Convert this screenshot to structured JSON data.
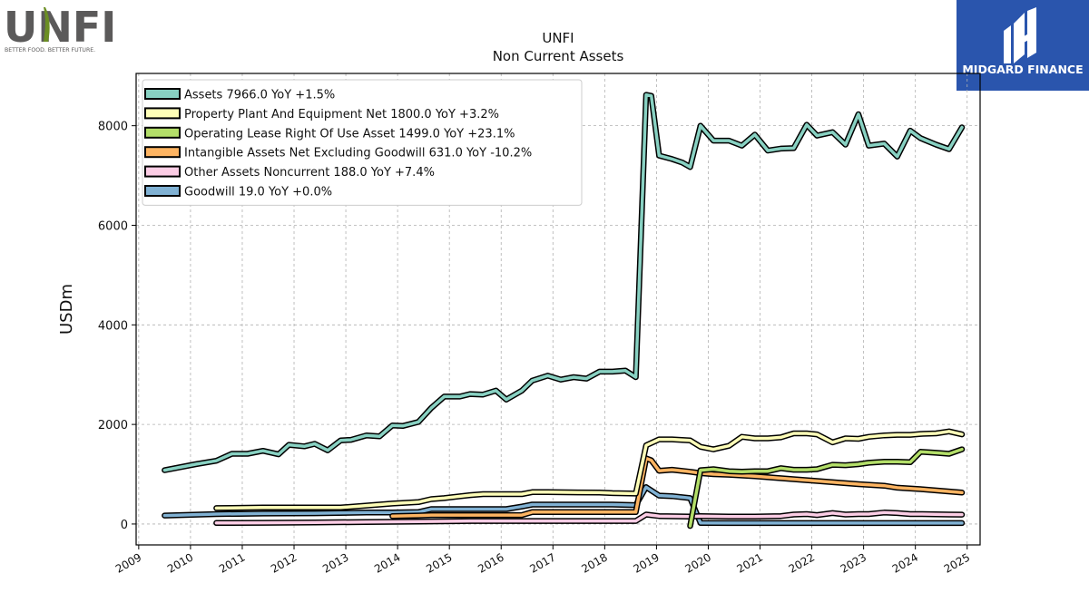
{
  "brand": {
    "left_logo": {
      "wordmark": "UNFI",
      "tagline": "BETTER FOOD. BETTER FUTURE."
    },
    "right_logo": {
      "name": "MIDGARD FINANCE",
      "bg_color": "#2a55ad"
    }
  },
  "chart_data": {
    "type": "line",
    "title": "UNFI",
    "subtitle": "Non Current  Assets",
    "xlabel": "",
    "ylabel": "USDm",
    "xlim": [
      2008.95,
      2025.25
    ],
    "ylim": [
      -420,
      9050
    ],
    "yticks": [
      0,
      2000,
      4000,
      6000,
      8000
    ],
    "xticks": [
      "2009",
      "2010",
      "2011",
      "2012",
      "2013",
      "2014",
      "2015",
      "2016",
      "2017",
      "2018",
      "2019",
      "2020",
      "2021",
      "2022",
      "2023",
      "2024",
      "2025"
    ],
    "grid": true,
    "legend_position": "top-left",
    "series": [
      {
        "name": "Assets  7966.0 YoY +1.5%",
        "color": "#88d1c2",
        "points": [
          [
            2009.5,
            1080
          ],
          [
            2010.1,
            1200
          ],
          [
            2010.5,
            1270
          ],
          [
            2010.8,
            1410
          ],
          [
            2011.1,
            1410
          ],
          [
            2011.4,
            1470
          ],
          [
            2011.7,
            1400
          ],
          [
            2011.9,
            1590
          ],
          [
            2012.2,
            1560
          ],
          [
            2012.4,
            1610
          ],
          [
            2012.65,
            1480
          ],
          [
            2012.9,
            1680
          ],
          [
            2013.1,
            1690
          ],
          [
            2013.4,
            1780
          ],
          [
            2013.65,
            1760
          ],
          [
            2013.9,
            1980
          ],
          [
            2014.1,
            1970
          ],
          [
            2014.4,
            2050
          ],
          [
            2014.65,
            2330
          ],
          [
            2014.9,
            2560
          ],
          [
            2015.2,
            2560
          ],
          [
            2015.4,
            2610
          ],
          [
            2015.65,
            2600
          ],
          [
            2015.9,
            2680
          ],
          [
            2016.1,
            2500
          ],
          [
            2016.4,
            2680
          ],
          [
            2016.6,
            2880
          ],
          [
            2016.9,
            2980
          ],
          [
            2017.15,
            2900
          ],
          [
            2017.4,
            2950
          ],
          [
            2017.65,
            2920
          ],
          [
            2017.9,
            3060
          ],
          [
            2018.15,
            3060
          ],
          [
            2018.4,
            3080
          ],
          [
            2018.6,
            2950
          ],
          [
            2018.8,
            8620
          ],
          [
            2018.9,
            8600
          ],
          [
            2019.05,
            7400
          ],
          [
            2019.3,
            7330
          ],
          [
            2019.5,
            7260
          ],
          [
            2019.65,
            7170
          ],
          [
            2019.85,
            8000
          ],
          [
            2020.1,
            7700
          ],
          [
            2020.4,
            7700
          ],
          [
            2020.65,
            7600
          ],
          [
            2020.9,
            7820
          ],
          [
            2021.15,
            7500
          ],
          [
            2021.4,
            7540
          ],
          [
            2021.65,
            7550
          ],
          [
            2021.9,
            8020
          ],
          [
            2022.1,
            7800
          ],
          [
            2022.4,
            7870
          ],
          [
            2022.65,
            7620
          ],
          [
            2022.9,
            8230
          ],
          [
            2023.1,
            7600
          ],
          [
            2023.4,
            7640
          ],
          [
            2023.65,
            7380
          ],
          [
            2023.9,
            7900
          ],
          [
            2024.1,
            7750
          ],
          [
            2024.4,
            7620
          ],
          [
            2024.65,
            7530
          ],
          [
            2024.9,
            7966
          ]
        ]
      },
      {
        "name": "Property Plant And Equipment Net  1800.0 YoY +3.2%",
        "color": "#fefeb8",
        "points": [
          [
            2010.5,
            320
          ],
          [
            2011.4,
            330
          ],
          [
            2011.9,
            330
          ],
          [
            2012.4,
            330
          ],
          [
            2012.9,
            330
          ],
          [
            2013.4,
            370
          ],
          [
            2013.9,
            410
          ],
          [
            2014.4,
            440
          ],
          [
            2014.65,
            500
          ],
          [
            2014.9,
            520
          ],
          [
            2015.4,
            580
          ],
          [
            2015.65,
            600
          ],
          [
            2016.4,
            600
          ],
          [
            2016.6,
            640
          ],
          [
            2016.9,
            640
          ],
          [
            2017.9,
            630
          ],
          [
            2018.15,
            620
          ],
          [
            2018.6,
            610
          ],
          [
            2018.8,
            1580
          ],
          [
            2019.05,
            1700
          ],
          [
            2019.3,
            1700
          ],
          [
            2019.65,
            1680
          ],
          [
            2019.85,
            1550
          ],
          [
            2020.1,
            1500
          ],
          [
            2020.4,
            1570
          ],
          [
            2020.65,
            1750
          ],
          [
            2020.9,
            1720
          ],
          [
            2021.15,
            1720
          ],
          [
            2021.4,
            1740
          ],
          [
            2021.65,
            1820
          ],
          [
            2021.9,
            1820
          ],
          [
            2022.1,
            1800
          ],
          [
            2022.4,
            1640
          ],
          [
            2022.65,
            1720
          ],
          [
            2022.9,
            1710
          ],
          [
            2023.1,
            1750
          ],
          [
            2023.4,
            1780
          ],
          [
            2023.65,
            1790
          ],
          [
            2023.9,
            1790
          ],
          [
            2024.1,
            1810
          ],
          [
            2024.4,
            1820
          ],
          [
            2024.65,
            1860
          ],
          [
            2024.9,
            1800
          ]
        ]
      },
      {
        "name": "Operating Lease Right Of Use Asset  1499.0 YoY +23.1%",
        "color": "#b3de69",
        "points": [
          [
            2019.65,
            -40
          ],
          [
            2019.85,
            1080
          ],
          [
            2020.1,
            1100
          ],
          [
            2020.4,
            1060
          ],
          [
            2020.65,
            1050
          ],
          [
            2020.9,
            1060
          ],
          [
            2021.15,
            1060
          ],
          [
            2021.4,
            1120
          ],
          [
            2021.65,
            1090
          ],
          [
            2021.9,
            1090
          ],
          [
            2022.1,
            1100
          ],
          [
            2022.4,
            1190
          ],
          [
            2022.65,
            1180
          ],
          [
            2022.9,
            1200
          ],
          [
            2023.1,
            1230
          ],
          [
            2023.4,
            1250
          ],
          [
            2023.65,
            1250
          ],
          [
            2023.9,
            1240
          ],
          [
            2024.1,
            1450
          ],
          [
            2024.4,
            1430
          ],
          [
            2024.65,
            1410
          ],
          [
            2024.9,
            1499
          ]
        ]
      },
      {
        "name": "Intangible Assets Net Excluding Goodwill  631.0 YoY -10.2%",
        "color": "#fdb462",
        "points": [
          [
            2013.9,
            160
          ],
          [
            2014.4,
            170
          ],
          [
            2014.65,
            180
          ],
          [
            2015.4,
            180
          ],
          [
            2016.4,
            180
          ],
          [
            2016.6,
            240
          ],
          [
            2017.4,
            240
          ],
          [
            2018.6,
            240
          ],
          [
            2018.8,
            1320
          ],
          [
            2018.9,
            1280
          ],
          [
            2019.05,
            1070
          ],
          [
            2019.3,
            1090
          ],
          [
            2019.65,
            1050
          ],
          [
            2019.85,
            1020
          ],
          [
            2020.1,
            1000
          ],
          [
            2020.4,
            990
          ],
          [
            2020.9,
            960
          ],
          [
            2021.9,
            880
          ],
          [
            2022.9,
            800
          ],
          [
            2023.4,
            770
          ],
          [
            2023.65,
            730
          ],
          [
            2024.1,
            700
          ],
          [
            2024.9,
            631
          ]
        ]
      },
      {
        "name": "Other Assets Noncurrent  188.0 YoY +7.4%",
        "color": "#fccde5",
        "points": [
          [
            2010.5,
            20
          ],
          [
            2011.4,
            25
          ],
          [
            2012.4,
            30
          ],
          [
            2013.4,
            40
          ],
          [
            2014.4,
            50
          ],
          [
            2015.4,
            60
          ],
          [
            2016.4,
            60
          ],
          [
            2017.4,
            60
          ],
          [
            2018.15,
            60
          ],
          [
            2018.6,
            60
          ],
          [
            2018.8,
            190
          ],
          [
            2019.05,
            160
          ],
          [
            2019.65,
            150
          ],
          [
            2019.85,
            160
          ],
          [
            2020.4,
            150
          ],
          [
            2020.9,
            150
          ],
          [
            2021.4,
            160
          ],
          [
            2021.65,
            190
          ],
          [
            2021.9,
            200
          ],
          [
            2022.1,
            180
          ],
          [
            2022.4,
            220
          ],
          [
            2022.65,
            190
          ],
          [
            2022.9,
            200
          ],
          [
            2023.1,
            200
          ],
          [
            2023.4,
            230
          ],
          [
            2023.65,
            220
          ],
          [
            2023.9,
            200
          ],
          [
            2024.1,
            200
          ],
          [
            2024.65,
            190
          ],
          [
            2024.9,
            188
          ]
        ]
      },
      {
        "name": "Goodwill  19.0 YoY +0.0%",
        "color": "#80b1d3",
        "points": [
          [
            2009.5,
            170
          ],
          [
            2010.5,
            200
          ],
          [
            2011.4,
            210
          ],
          [
            2012.4,
            215
          ],
          [
            2013.4,
            230
          ],
          [
            2013.9,
            230
          ],
          [
            2014.4,
            240
          ],
          [
            2014.65,
            300
          ],
          [
            2015.4,
            300
          ],
          [
            2016.1,
            300
          ],
          [
            2016.4,
            350
          ],
          [
            2016.6,
            390
          ],
          [
            2016.9,
            390
          ],
          [
            2017.4,
            390
          ],
          [
            2018.15,
            390
          ],
          [
            2018.6,
            380
          ],
          [
            2018.8,
            740
          ],
          [
            2019.05,
            570
          ],
          [
            2019.3,
            560
          ],
          [
            2019.65,
            520
          ],
          [
            2019.85,
            20
          ],
          [
            2020.4,
            19
          ],
          [
            2021.4,
            19
          ],
          [
            2022.4,
            19
          ],
          [
            2023.4,
            19
          ],
          [
            2024.4,
            19
          ],
          [
            2024.9,
            19
          ]
        ]
      }
    ]
  }
}
